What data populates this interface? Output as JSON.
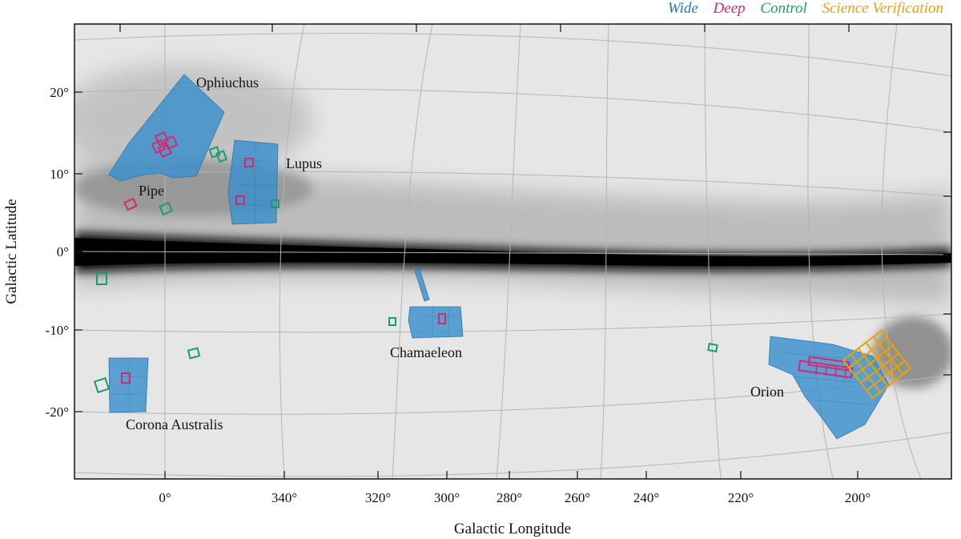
{
  "legend": [
    {
      "label": "Wide",
      "color": "#1f77b4"
    },
    {
      "label": "Deep",
      "color": "#d6286e"
    },
    {
      "label": "Control",
      "color": "#1a9e6a"
    },
    {
      "label": "Science Verification",
      "color": "#e8a10a"
    }
  ],
  "axes": {
    "xlabel": "Galactic Longitude",
    "ylabel": "Galactic Latitude",
    "xticks": [
      "0°",
      "340°",
      "320°",
      "300°",
      "280°",
      "260°",
      "240°",
      "220°",
      "200°"
    ],
    "yticks": [
      "20°",
      "10°",
      "0°",
      "-10°",
      "-20°"
    ]
  },
  "regions": [
    "Ophiuchus",
    "Lupus",
    "Pipe",
    "Chamaeleon",
    "Corona Australis",
    "Orion"
  ],
  "colors": {
    "wide_fill": "#3a8fcc",
    "deep": "#d6286e",
    "control": "#1a9e6a",
    "sv": "#e8a10a",
    "dust": "#1a1a1a",
    "grid": "#b5b5b5"
  }
}
